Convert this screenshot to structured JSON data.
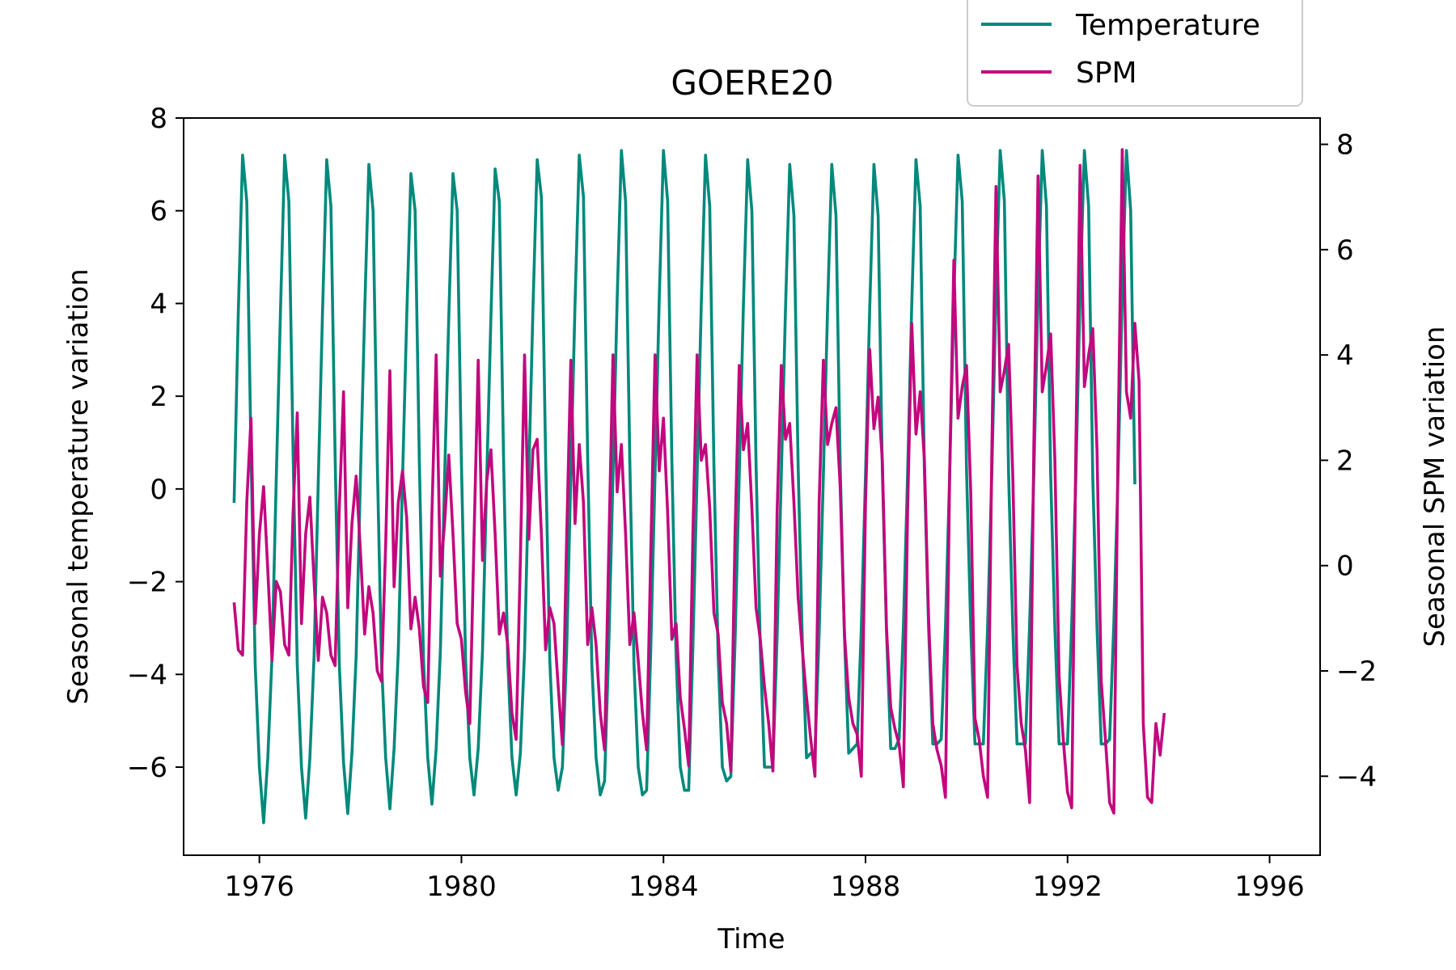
{
  "chart_data": {
    "type": "line",
    "title": "GOERE20",
    "xlabel": "Time",
    "ylabel_left": "Seasonal temperature variation",
    "ylabel_right": "Seasonal SPM variation",
    "xlim": [
      1974.5,
      1997.0
    ],
    "ylim_left": [
      -7.9,
      8.0
    ],
    "ylim_right": [
      -5.5,
      8.5
    ],
    "x_ticks": [
      1976,
      1980,
      1984,
      1988,
      1992,
      1996
    ],
    "y_ticks_left": [
      -6,
      -4,
      -2,
      0,
      2,
      4,
      6,
      8
    ],
    "y_ticks_right": [
      -4,
      -2,
      0,
      2,
      4,
      6,
      8
    ],
    "x_tick_labels": [
      "1976",
      "1980",
      "1984",
      "1988",
      "1992",
      "1996"
    ],
    "y_tick_labels_left": [
      "−6",
      "−4",
      "−2",
      "0",
      "2",
      "4",
      "6",
      "8"
    ],
    "y_tick_labels_right": [
      "−4",
      "−2",
      "0",
      "2",
      "4",
      "6",
      "8"
    ],
    "legend_position": "upper-right, above axes",
    "grid": false,
    "x_start": 1975.5,
    "x_step": 0.08333,
    "series": [
      {
        "name": "Temperature",
        "axis": "left",
        "color": "#00897b",
        "values": [
          -0.3,
          3.8,
          7.2,
          6.2,
          0.8,
          -3.8,
          -6.0,
          -7.2,
          -5.8,
          -3.6,
          0.2,
          3.8,
          7.2,
          6.2,
          0.8,
          -3.8,
          -6.0,
          -7.1,
          -5.8,
          -3.6,
          0.2,
          3.8,
          7.1,
          6.1,
          0.7,
          -3.8,
          -5.9,
          -7.0,
          -5.7,
          -3.6,
          0.2,
          3.8,
          7.0,
          6.0,
          0.6,
          -3.7,
          -5.8,
          -6.9,
          -5.6,
          -3.5,
          0.2,
          3.7,
          6.8,
          6.0,
          0.6,
          -3.7,
          -5.8,
          -6.8,
          -5.6,
          -3.5,
          0.2,
          3.7,
          6.8,
          6.0,
          0.6,
          -3.7,
          -5.8,
          -6.6,
          -5.6,
          -3.5,
          0.2,
          3.7,
          6.9,
          6.2,
          0.7,
          -3.7,
          -5.8,
          -6.6,
          -5.7,
          -3.5,
          0.3,
          3.9,
          7.1,
          6.3,
          0.7,
          -3.7,
          -5.8,
          -6.5,
          -6.0,
          -3.5,
          0.3,
          4.0,
          7.2,
          6.3,
          0.7,
          -3.8,
          -5.8,
          -6.6,
          -6.3,
          -3.4,
          0.3,
          4.1,
          7.3,
          6.2,
          0.6,
          -3.8,
          -6.0,
          -6.6,
          -6.5,
          -3.4,
          0.3,
          4.1,
          7.3,
          6.2,
          0.6,
          -3.6,
          -6.0,
          -6.5,
          -6.5,
          -3.4,
          0.3,
          4.0,
          7.2,
          6.1,
          0.5,
          -3.6,
          -6.0,
          -6.3,
          -6.2,
          -3.3,
          0.3,
          4.0,
          7.1,
          6.0,
          0.5,
          -3.4,
          -6.0,
          -6.0,
          -6.0,
          -3.2,
          0.3,
          3.9,
          7.0,
          5.9,
          0.5,
          -3.3,
          -5.8,
          -5.7,
          -5.7,
          -3.1,
          0.3,
          3.9,
          7.0,
          5.9,
          0.5,
          -3.2,
          -5.7,
          -5.6,
          -5.5,
          -3.0,
          0.3,
          3.9,
          7.0,
          5.9,
          0.4,
          -3.1,
          -5.6,
          -5.6,
          -5.4,
          -3.0,
          0.3,
          4.0,
          7.1,
          6.1,
          0.4,
          -3.0,
          -5.5,
          -5.5,
          -5.4,
          -3.0,
          0.3,
          4.1,
          7.2,
          6.2,
          0.4,
          -3.0,
          -5.5,
          -5.5,
          -5.5,
          -3.0,
          0.3,
          4.2,
          7.3,
          6.2,
          0.3,
          -3.0,
          -5.5,
          -5.5,
          -5.5,
          -2.9,
          0.3,
          4.2,
          7.3,
          6.1,
          0.3,
          -3.0,
          -5.5,
          -5.5,
          -5.5,
          -2.9,
          0.3,
          4.2,
          7.3,
          6.1,
          0.2,
          -3.0,
          -5.5,
          -5.5,
          -5.4,
          -2.9,
          0.3,
          4.2,
          7.3,
          6.0,
          0.1
        ]
      },
      {
        "name": "SPM",
        "axis": "right",
        "color": "#c2077e",
        "values": [
          -0.7,
          -1.6,
          -1.7,
          1.2,
          2.8,
          -1.1,
          0.6,
          1.5,
          -0.1,
          -1.8,
          -0.3,
          -0.5,
          -1.5,
          -1.7,
          1.0,
          2.9,
          -1.1,
          0.6,
          1.3,
          -0.3,
          -1.8,
          -0.6,
          -0.9,
          -1.7,
          -1.9,
          1.1,
          3.3,
          -0.8,
          0.8,
          1.7,
          0.3,
          -1.3,
          -0.4,
          -0.9,
          -2.0,
          -2.2,
          0.4,
          3.7,
          -0.4,
          1.2,
          1.8,
          0.9,
          -1.2,
          -0.6,
          -1.2,
          -2.3,
          -2.6,
          1.0,
          4.0,
          -0.2,
          0.8,
          2.1,
          0.6,
          -1.1,
          -1.4,
          -2.4,
          -3.0,
          0.5,
          3.9,
          0.1,
          1.6,
          2.2,
          0.6,
          -1.3,
          -0.9,
          -1.5,
          -2.8,
          -3.3,
          0.1,
          4.0,
          0.5,
          2.2,
          2.4,
          0.6,
          -1.6,
          -0.8,
          -1.1,
          -2.3,
          -3.4,
          0.5,
          3.9,
          0.8,
          2.3,
          1.2,
          -1.5,
          -0.8,
          -1.5,
          -2.8,
          -3.5,
          0.3,
          4.0,
          1.4,
          2.3,
          0.6,
          -1.5,
          -0.9,
          -1.8,
          -2.8,
          -3.5,
          0.3,
          4.0,
          1.8,
          2.8,
          1.0,
          -1.4,
          -1.1,
          -2.5,
          -3.1,
          -3.8,
          0.6,
          4.0,
          2.0,
          2.3,
          1.1,
          -0.9,
          -1.3,
          -2.6,
          -3.0,
          -3.9,
          0.6,
          3.8,
          2.2,
          2.7,
          1.1,
          -0.8,
          -1.4,
          -2.3,
          -3.0,
          -3.9,
          1.0,
          3.8,
          2.4,
          2.7,
          1.2,
          -0.6,
          -1.6,
          -2.5,
          -3.3,
          -4.0,
          1.2,
          3.9,
          2.3,
          2.7,
          3.0,
          1.5,
          -1.3,
          -2.5,
          -3.0,
          -3.2,
          -4.0,
          1.2,
          4.1,
          2.6,
          3.2,
          2.0,
          -1.2,
          -2.7,
          -3.1,
          -3.4,
          -4.2,
          1.0,
          4.6,
          2.5,
          3.3,
          2.0,
          -1.0,
          -3.0,
          -3.5,
          -3.8,
          -4.4,
          1.7,
          5.8,
          2.8,
          3.4,
          3.8,
          1.4,
          -2.9,
          -3.3,
          -4.0,
          -4.4,
          2.1,
          7.2,
          3.3,
          3.7,
          4.2,
          1.7,
          -1.9,
          -3.0,
          -3.5,
          -4.5,
          2.3,
          7.4,
          3.3,
          3.8,
          4.4,
          2.0,
          -2.1,
          -3.3,
          -4.3,
          -4.6,
          2.3,
          7.6,
          3.4,
          4.0,
          4.5,
          2.2,
          -2.2,
          -3.3,
          -4.5,
          -4.7,
          2.3,
          7.9,
          3.3,
          2.8,
          4.6,
          3.5,
          -3.0,
          -4.4,
          -4.5,
          -3.0,
          -3.6,
          -2.8
        ]
      }
    ]
  },
  "legend": {
    "items": [
      {
        "label": "Temperature",
        "color": "#00897b"
      },
      {
        "label": "SPM",
        "color": "#c2077e"
      }
    ]
  }
}
